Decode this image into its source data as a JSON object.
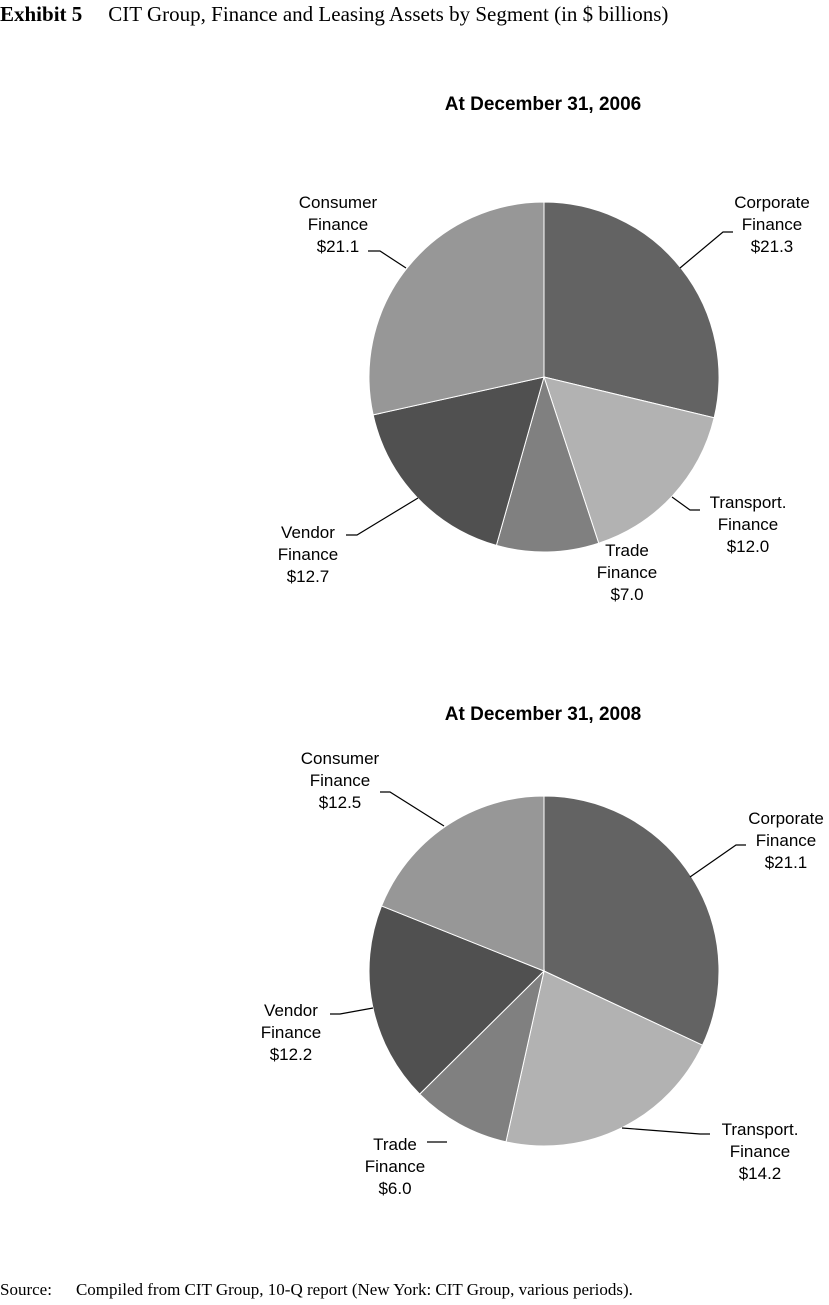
{
  "header": {
    "exhibit_label": "Exhibit 5",
    "title": "CIT Group, Finance and Leasing Assets by Segment (in $ billions)"
  },
  "footer": {
    "source_label": "Source:",
    "source_text": "Compiled from CIT Group, 10-Q report (New York: CIT Group, various periods)."
  },
  "colors": {
    "corporate": "#636363",
    "transport": "#b2b2b2",
    "trade": "#808080",
    "vendor": "#505050",
    "consumer": "#979797"
  },
  "chart_data": [
    {
      "type": "pie",
      "title": "At December 31, 2006",
      "order": "clockwise from 12 o'clock",
      "slices": [
        {
          "label": "Corporate Finance",
          "value": 21.3,
          "value_label": "$21.3",
          "color": "#636363"
        },
        {
          "label": "Transport. Finance",
          "value": 12.0,
          "value_label": "$12.0",
          "color": "#b2b2b2"
        },
        {
          "label": "Trade Finance",
          "value": 7.0,
          "value_label": "$7.0",
          "color": "#808080"
        },
        {
          "label": "Vendor Finance",
          "value": 12.7,
          "value_label": "$12.7",
          "color": "#505050"
        },
        {
          "label": "Consumer Finance",
          "value": 21.1,
          "value_label": "$21.1",
          "color": "#979797"
        }
      ]
    },
    {
      "type": "pie",
      "title": "At December 31, 2008",
      "order": "clockwise from 12 o'clock",
      "slices": [
        {
          "label": "Corporate Finance",
          "value": 21.1,
          "value_label": "$21.1",
          "color": "#636363"
        },
        {
          "label": "Transport. Finance",
          "value": 14.2,
          "value_label": "$14.2",
          "color": "#b2b2b2"
        },
        {
          "label": "Trade Finance",
          "value": 6.0,
          "value_label": "$6.0",
          "color": "#808080"
        },
        {
          "label": "Vendor Finance",
          "value": 12.2,
          "value_label": "$12.2",
          "color": "#505050"
        },
        {
          "label": "Consumer Finance",
          "value": 12.5,
          "value_label": "$12.5",
          "color": "#979797"
        }
      ]
    }
  ]
}
